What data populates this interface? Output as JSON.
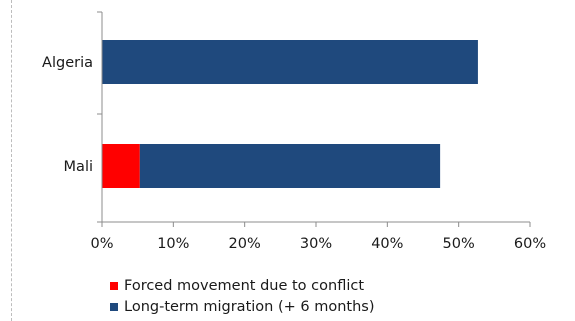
{
  "chart_data": {
    "type": "bar",
    "orientation": "horizontal",
    "stacked": true,
    "categories": [
      "Algeria",
      "Mali"
    ],
    "series": [
      {
        "name": "Forced movement due to conflict",
        "color": "#ff0000",
        "values": [
          0,
          5.3
        ]
      },
      {
        "name": "Long-term migration (+ 6 months)",
        "color": "#1f497d",
        "values": [
          52.7,
          42.1
        ]
      }
    ],
    "xlim": [
      0,
      60
    ],
    "xticks": [
      "0%",
      "10%",
      "20%",
      "30%",
      "40%",
      "50%",
      "60%"
    ],
    "grid": false,
    "legend_position": "bottom"
  }
}
